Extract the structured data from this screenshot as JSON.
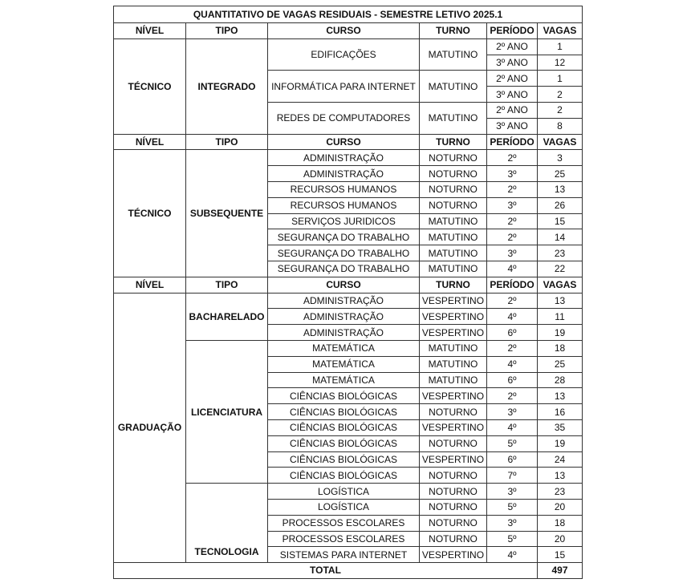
{
  "title": "QUANTITATIVO DE VAGAS RESIDUAIS - SEMESTRE LETIVO 2025.1",
  "headers": [
    "NÍVEL",
    "TIPO",
    "CURSO",
    "TURNO",
    "PERÍODO",
    "VAGAS"
  ],
  "sections": [
    {
      "nivel": "TÉCNICO",
      "tipos": [
        {
          "tipo": "INTEGRADO",
          "cursos": [
            {
              "curso": "EDIFICAÇÕES",
              "turno": "MATUTINO",
              "periodos": [
                {
                  "periodo": "2º ANO",
                  "vagas": "1"
                },
                {
                  "periodo": "3º ANO",
                  "vagas": "12"
                }
              ]
            },
            {
              "curso": "INFORMÁTICA PARA INTERNET",
              "turno": "MATUTINO",
              "periodos": [
                {
                  "periodo": "2º ANO",
                  "vagas": "1"
                },
                {
                  "periodo": "3º ANO",
                  "vagas": "2"
                }
              ]
            },
            {
              "curso": "REDES DE COMPUTADORES",
              "turno": "MATUTINO",
              "periodos": [
                {
                  "periodo": "2º ANO",
                  "vagas": "2"
                },
                {
                  "periodo": "3º ANO",
                  "vagas": "8"
                }
              ]
            }
          ]
        }
      ]
    },
    {
      "nivel": "TÉCNICO",
      "tipos": [
        {
          "tipo": "SUBSEQUENTE",
          "cursos": [
            {
              "curso": "ADMINISTRAÇÃO",
              "turno": "NOTURNO",
              "periodos": [
                {
                  "periodo": "2º",
                  "vagas": "3"
                }
              ]
            },
            {
              "curso": "ADMINISTRAÇÃO",
              "turno": "NOTURNO",
              "periodos": [
                {
                  "periodo": "3º",
                  "vagas": "25"
                }
              ]
            },
            {
              "curso": "RECURSOS HUMANOS",
              "turno": "NOTURNO",
              "periodos": [
                {
                  "periodo": "2º",
                  "vagas": "13"
                }
              ]
            },
            {
              "curso": "RECURSOS HUMANOS",
              "turno": "NOTURNO",
              "periodos": [
                {
                  "periodo": "3º",
                  "vagas": "26"
                }
              ]
            },
            {
              "curso": "SERVIÇOS JURIDICOS",
              "turno": "MATUTINO",
              "periodos": [
                {
                  "periodo": "2º",
                  "vagas": "15"
                }
              ]
            },
            {
              "curso": "SEGURANÇA DO TRABALHO",
              "turno": "MATUTINO",
              "periodos": [
                {
                  "periodo": "2º",
                  "vagas": "14"
                }
              ]
            },
            {
              "curso": "SEGURANÇA DO TRABALHO",
              "turno": "MATUTINO",
              "periodos": [
                {
                  "periodo": "3º",
                  "vagas": "23"
                }
              ]
            },
            {
              "curso": "SEGURANÇA DO TRABALHO",
              "turno": "MATUTINO",
              "periodos": [
                {
                  "periodo": "4º",
                  "vagas": "22"
                }
              ]
            }
          ]
        }
      ]
    },
    {
      "nivel": "GRADUAÇÃO",
      "tipos": [
        {
          "tipo": "BACHARELADO",
          "cursos": [
            {
              "curso": "ADMINISTRAÇÃO",
              "turno": "VESPERTINO",
              "periodos": [
                {
                  "periodo": "2º",
                  "vagas": "13"
                }
              ]
            },
            {
              "curso": "ADMINISTRAÇÃO",
              "turno": "VESPERTINO",
              "periodos": [
                {
                  "periodo": "4º",
                  "vagas": "11"
                }
              ]
            },
            {
              "curso": "ADMINISTRAÇÃO",
              "turno": "VESPERTINO",
              "periodos": [
                {
                  "periodo": "6º",
                  "vagas": "19"
                }
              ]
            }
          ]
        },
        {
          "tipo": "LICENCIATURA",
          "cursos": [
            {
              "curso": "MATEMÁTICA",
              "turno": "MATUTINO",
              "periodos": [
                {
                  "periodo": "2º",
                  "vagas": "18"
                }
              ]
            },
            {
              "curso": "MATEMÁTICA",
              "turno": "MATUTINO",
              "periodos": [
                {
                  "periodo": "4º",
                  "vagas": "25"
                }
              ]
            },
            {
              "curso": "MATEMÁTICA",
              "turno": "MATUTINO",
              "periodos": [
                {
                  "periodo": "6º",
                  "vagas": "28"
                }
              ]
            },
            {
              "curso": "CIÊNCIAS BIOLÓGICAS",
              "turno": "VESPERTINO",
              "periodos": [
                {
                  "periodo": "2º",
                  "vagas": "13"
                }
              ]
            },
            {
              "curso": "CIÊNCIAS BIOLÓGICAS",
              "turno": "NOTURNO",
              "periodos": [
                {
                  "periodo": "3º",
                  "vagas": "16"
                }
              ]
            },
            {
              "curso": "CIÊNCIAS BIOLÓGICAS",
              "turno": "VESPERTINO",
              "periodos": [
                {
                  "periodo": "4º",
                  "vagas": "35"
                }
              ]
            },
            {
              "curso": "CIÊNCIAS BIOLÓGICAS",
              "turno": "NOTURNO",
              "periodos": [
                {
                  "periodo": "5º",
                  "vagas": "19"
                }
              ]
            },
            {
              "curso": "CIÊNCIAS BIOLÓGICAS",
              "turno": "VESPERTINO",
              "periodos": [
                {
                  "periodo": "6º",
                  "vagas": "24"
                }
              ]
            },
            {
              "curso": "CIÊNCIAS BIOLÓGICAS",
              "turno": "NOTURNO",
              "periodos": [
                {
                  "periodo": "7º",
                  "vagas": "13"
                }
              ]
            }
          ]
        },
        {
          "tipo": "TECNOLOGIA",
          "cursos": [
            {
              "curso": "LOGÍSTICA",
              "turno": "NOTURNO",
              "periodos": [
                {
                  "periodo": "3º",
                  "vagas": "23"
                }
              ]
            },
            {
              "curso": "LOGÍSTICA",
              "turno": "NOTURNO",
              "periodos": [
                {
                  "periodo": "5º",
                  "vagas": "20"
                }
              ]
            },
            {
              "curso": "PROCESSOS ESCOLARES",
              "turno": "NOTURNO",
              "periodos": [
                {
                  "periodo": "3º",
                  "vagas": "18"
                }
              ]
            },
            {
              "curso": "PROCESSOS ESCOLARES",
              "turno": "NOTURNO",
              "periodos": [
                {
                  "periodo": "5º",
                  "vagas": "20"
                }
              ]
            },
            {
              "curso": "SISTEMAS PARA INTERNET",
              "turno": "VESPERTINO",
              "periodos": [
                {
                  "periodo": "4º",
                  "vagas": "15"
                }
              ]
            }
          ]
        }
      ]
    }
  ],
  "total": {
    "label": "TOTAL",
    "value": "497"
  }
}
